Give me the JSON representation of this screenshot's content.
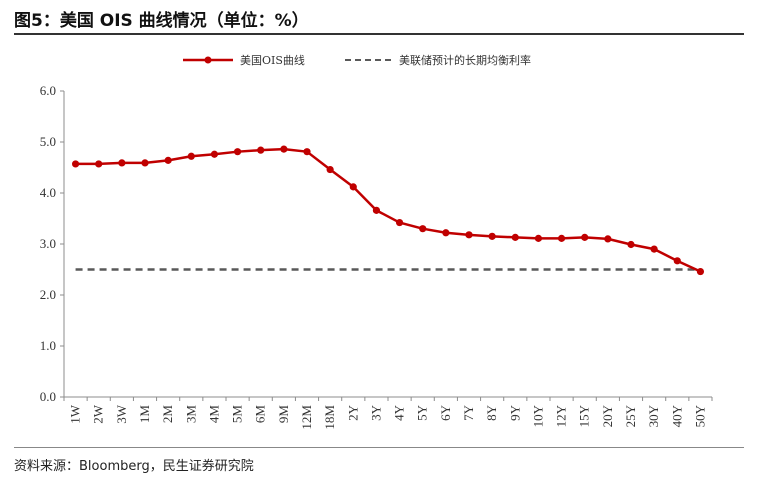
{
  "figure": {
    "title": "图5：美国 OIS 曲线情况（单位：%）",
    "source": "资料来源：Bloomberg，民生证券研究院"
  },
  "chart_data": {
    "type": "line",
    "title": "",
    "xlabel": "",
    "ylabel": "",
    "ylim": [
      0,
      6
    ],
    "yticks": [
      "0.0",
      "1.0",
      "2.0",
      "3.0",
      "4.0",
      "5.0",
      "6.0"
    ],
    "grid": false,
    "legend_position": "top",
    "categories": [
      "1W",
      "2W",
      "3W",
      "1M",
      "2M",
      "3M",
      "4M",
      "5M",
      "6M",
      "9M",
      "12M",
      "18M",
      "2Y",
      "3Y",
      "4Y",
      "5Y",
      "6Y",
      "7Y",
      "8Y",
      "9Y",
      "10Y",
      "12Y",
      "15Y",
      "20Y",
      "25Y",
      "30Y",
      "40Y",
      "50Y"
    ],
    "series": [
      {
        "name": "美国OIS曲线",
        "color": "#c00000",
        "style": "solid-with-markers",
        "values": [
          4.57,
          4.57,
          4.59,
          4.59,
          4.64,
          4.72,
          4.76,
          4.81,
          4.84,
          4.86,
          4.81,
          4.46,
          4.12,
          3.66,
          3.42,
          3.3,
          3.22,
          3.18,
          3.15,
          3.13,
          3.11,
          3.11,
          3.13,
          3.1,
          2.99,
          2.9,
          2.67,
          2.46
        ]
      },
      {
        "name": "美联储预计的长期均衡利率",
        "color": "#595959",
        "style": "dashed",
        "values": [
          2.5,
          2.5,
          2.5,
          2.5,
          2.5,
          2.5,
          2.5,
          2.5,
          2.5,
          2.5,
          2.5,
          2.5,
          2.5,
          2.5,
          2.5,
          2.5,
          2.5,
          2.5,
          2.5,
          2.5,
          2.5,
          2.5,
          2.5,
          2.5,
          2.5,
          2.5,
          2.5,
          2.5
        ]
      }
    ]
  }
}
